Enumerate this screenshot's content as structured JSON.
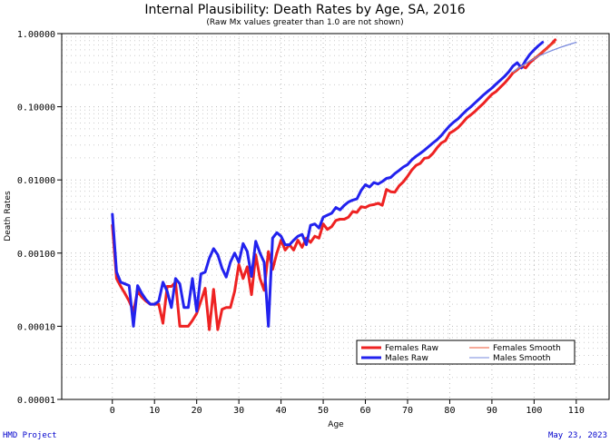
{
  "footer": {
    "left": "HMD Project",
    "right": "May 23, 2023"
  },
  "chart_data": {
    "type": "line",
    "title": "Internal Plausibility: Death Rates by Age, SA, 2016",
    "subtitle": "(Raw Mx values greater than 1.0 are not shown)",
    "xlabel": "Age",
    "ylabel": "Death Rates",
    "xlim": [
      -12,
      118
    ],
    "ylim": [
      1e-05,
      1.0
    ],
    "yscale": "log",
    "x_ticks": [
      0,
      10,
      20,
      30,
      40,
      50,
      60,
      70,
      80,
      90,
      100,
      110
    ],
    "y_ticks": [
      {
        "value": 1e-05,
        "label": "0.00001"
      },
      {
        "value": 0.0001,
        "label": "0.00010"
      },
      {
        "value": 0.001,
        "label": "0.00100"
      },
      {
        "value": 0.01,
        "label": "0.01000"
      },
      {
        "value": 0.1,
        "label": "0.10000"
      },
      {
        "value": 1.0,
        "label": "1.00000"
      }
    ],
    "grid": true,
    "legend_position": "bottom-right",
    "series": [
      {
        "name": "Females Raw",
        "color": "#ee2222",
        "style": "raw",
        "x": [
          0,
          1,
          2,
          3,
          4,
          5,
          6,
          7,
          8,
          9,
          10,
          11,
          12,
          13,
          14,
          15,
          16,
          17,
          18,
          19,
          20,
          21,
          22,
          23,
          24,
          25,
          26,
          27,
          28,
          29,
          30,
          31,
          32,
          33,
          34,
          35,
          36,
          37,
          38,
          39,
          40,
          41,
          42,
          43,
          44,
          45,
          46,
          47,
          48,
          49,
          50,
          51,
          52,
          53,
          54,
          55,
          56,
          57,
          58,
          59,
          60,
          61,
          62,
          63,
          64,
          65,
          66,
          67,
          68,
          69,
          70,
          71,
          72,
          73,
          74,
          75,
          76,
          77,
          78,
          79,
          80,
          81,
          82,
          83,
          84,
          85,
          86,
          87,
          88,
          89,
          90,
          91,
          92,
          93,
          94,
          95,
          96,
          97,
          98,
          99,
          100,
          101,
          102,
          103,
          104,
          105
        ],
        "y": [
          0.0024,
          0.00045,
          0.00035,
          0.00028,
          0.00022,
          0.00016,
          0.0003,
          0.00025,
          0.00022,
          0.0002,
          0.0002,
          0.0002,
          0.00011,
          0.00035,
          0.00035,
          0.0004,
          0.0001,
          0.0001,
          0.0001,
          0.00012,
          0.00015,
          0.00022,
          0.00033,
          9e-05,
          0.00032,
          9e-05,
          0.00017,
          0.00018,
          0.00018,
          0.0003,
          0.0007,
          0.00045,
          0.00065,
          0.00027,
          0.00095,
          0.00045,
          0.00031,
          0.00105,
          0.0006,
          0.001,
          0.0015,
          0.0011,
          0.0013,
          0.0011,
          0.0015,
          0.0012,
          0.0016,
          0.0014,
          0.0017,
          0.0016,
          0.0025,
          0.0021,
          0.0023,
          0.0028,
          0.0029,
          0.0029,
          0.0031,
          0.0037,
          0.0036,
          0.0043,
          0.0042,
          0.0045,
          0.0046,
          0.0048,
          0.0045,
          0.0074,
          0.0069,
          0.0068,
          0.0083,
          0.0094,
          0.0112,
          0.0136,
          0.0158,
          0.0168,
          0.0198,
          0.0202,
          0.023,
          0.0275,
          0.032,
          0.0345,
          0.0435,
          0.0472,
          0.052,
          0.06,
          0.07,
          0.0775,
          0.0865,
          0.0985,
          0.111,
          0.129,
          0.148,
          0.162,
          0.185,
          0.21,
          0.245,
          0.29,
          0.32,
          0.36,
          0.34,
          0.4,
          0.45,
          0.5,
          0.56,
          0.63,
          0.71,
          0.82
        ]
      },
      {
        "name": "Males Raw",
        "color": "#2222ee",
        "style": "raw",
        "x": [
          0,
          1,
          2,
          3,
          4,
          5,
          6,
          7,
          8,
          9,
          10,
          11,
          12,
          13,
          14,
          15,
          16,
          17,
          18,
          19,
          20,
          21,
          22,
          23,
          24,
          25,
          26,
          27,
          28,
          29,
          30,
          31,
          32,
          33,
          34,
          35,
          36,
          37,
          38,
          39,
          40,
          41,
          42,
          43,
          44,
          45,
          46,
          47,
          48,
          49,
          50,
          51,
          52,
          53,
          54,
          55,
          56,
          57,
          58,
          59,
          60,
          61,
          62,
          63,
          64,
          65,
          66,
          67,
          68,
          69,
          70,
          71,
          72,
          73,
          74,
          75,
          76,
          77,
          78,
          79,
          80,
          81,
          82,
          83,
          84,
          85,
          86,
          87,
          88,
          89,
          90,
          91,
          92,
          93,
          94,
          95,
          96,
          97,
          98,
          99,
          100,
          101,
          102
        ],
        "y": [
          0.0034,
          0.00055,
          0.0004,
          0.00038,
          0.00036,
          0.0001,
          0.00036,
          0.00028,
          0.00023,
          0.0002,
          0.0002,
          0.00022,
          0.0004,
          0.0003,
          0.00018,
          0.00045,
          0.00038,
          0.00018,
          0.00018,
          0.00045,
          0.00016,
          0.00052,
          0.00055,
          0.00085,
          0.00115,
          0.00095,
          0.00062,
          0.00047,
          0.00075,
          0.001,
          0.00075,
          0.00135,
          0.00105,
          0.00048,
          0.00145,
          0.001,
          0.00075,
          0.0001,
          0.0016,
          0.0019,
          0.0017,
          0.0013,
          0.0013,
          0.0015,
          0.0017,
          0.0018,
          0.0013,
          0.0024,
          0.0025,
          0.0022,
          0.0031,
          0.0033,
          0.0035,
          0.0042,
          0.0039,
          0.0045,
          0.005,
          0.0053,
          0.0055,
          0.0072,
          0.0086,
          0.008,
          0.0092,
          0.0088,
          0.0095,
          0.0105,
          0.0108,
          0.0122,
          0.0135,
          0.015,
          0.0162,
          0.0188,
          0.021,
          0.023,
          0.0255,
          0.0285,
          0.032,
          0.0355,
          0.0405,
          0.0475,
          0.055,
          0.062,
          0.0685,
          0.079,
          0.0895,
          0.1,
          0.113,
          0.128,
          0.145,
          0.162,
          0.18,
          0.205,
          0.23,
          0.26,
          0.3,
          0.36,
          0.4,
          0.34,
          0.43,
          0.52,
          0.6,
          0.68,
          0.76
        ]
      },
      {
        "name": "Females Smooth",
        "color": "#ee5533",
        "style": "smooth",
        "x": [
          95,
          96,
          97,
          98,
          99,
          100,
          101,
          102,
          103,
          104,
          105
        ],
        "y": [
          0.29,
          0.32,
          0.35,
          0.385,
          0.425,
          0.465,
          0.51,
          0.56,
          0.62,
          0.69,
          0.76
        ]
      },
      {
        "name": "Males Smooth",
        "color": "#7788dd",
        "style": "smooth",
        "x": [
          95,
          96,
          97,
          98,
          99,
          100,
          101,
          102,
          103,
          104,
          105,
          106,
          107,
          108,
          109,
          110
        ],
        "y": [
          0.3,
          0.33,
          0.36,
          0.39,
          0.42,
          0.45,
          0.49,
          0.52,
          0.55,
          0.58,
          0.61,
          0.64,
          0.67,
          0.7,
          0.73,
          0.76
        ]
      }
    ]
  }
}
